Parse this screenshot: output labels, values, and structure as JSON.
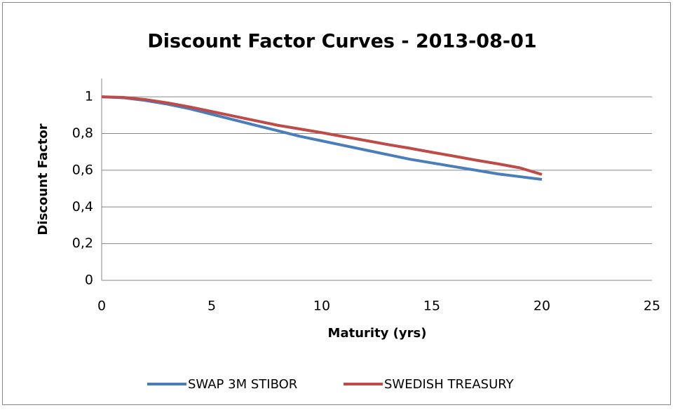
{
  "chart_data": {
    "type": "line",
    "title": "Discount Factor Curves - 2013-08-01",
    "xlabel": "Maturity (yrs)",
    "ylabel": "Discount Factor",
    "x": [
      0,
      1,
      2,
      3,
      4,
      5,
      6,
      7,
      8,
      9,
      10,
      11,
      12,
      13,
      14,
      15,
      16,
      17,
      18,
      19,
      20
    ],
    "series": [
      {
        "name": "SWAP 3M STIBOR",
        "color": "#4a7ebb",
        "values": [
          1,
          0.995,
          0.98,
          0.96,
          0.935,
          0.905,
          0.875,
          0.845,
          0.815,
          0.785,
          0.76,
          0.735,
          0.71,
          0.685,
          0.66,
          0.64,
          0.62,
          0.6,
          0.58,
          0.565,
          0.55
        ]
      },
      {
        "name": "SWEDISH TREASURY",
        "color": "#be4b48",
        "values": [
          1,
          0.997,
          0.985,
          0.967,
          0.945,
          0.92,
          0.895,
          0.87,
          0.845,
          0.825,
          0.805,
          0.783,
          0.762,
          0.74,
          0.72,
          0.698,
          0.677,
          0.655,
          0.635,
          0.613,
          0.577
        ]
      }
    ],
    "xlim": [
      0,
      25
    ],
    "xticks": [
      0,
      5,
      10,
      15,
      20,
      25
    ],
    "ylim": [
      0,
      1.1
    ],
    "yticks": [
      0,
      {
        "value": 0.2,
        "label": "0,2"
      },
      {
        "value": 0.4,
        "label": "0,4"
      },
      {
        "value": 0.6,
        "label": "0,6"
      },
      {
        "value": 0.8,
        "label": "0,8"
      },
      1
    ],
    "grid": true,
    "legend": "bottom"
  }
}
